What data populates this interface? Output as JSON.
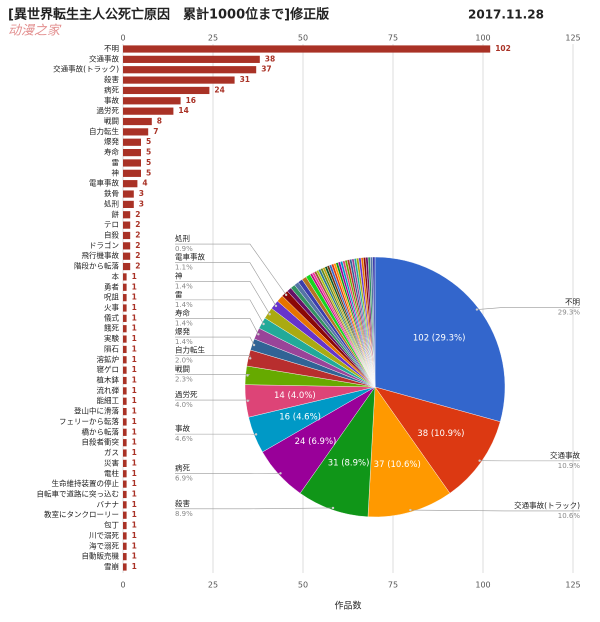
{
  "watermark": "动漫之家",
  "chart_data": [
    {
      "type": "bar",
      "orientation": "horizontal",
      "title": "[異世界転生主人公死亡原因　累計1000位まで]修正版",
      "subtitle": "2017.11.28",
      "xlabel": "作品数",
      "categories": [
        "不明",
        "交通事故",
        "交通事故(トラック)",
        "殺害",
        "病死",
        "事故",
        "過労死",
        "戦闘",
        "自力転生",
        "爆発",
        "寿命",
        "雷",
        "神",
        "電車事故",
        "鉄骨",
        "処刑",
        "餅",
        "テロ",
        "自殺",
        "ドラゴン",
        "飛行機事故",
        "階段から転落",
        "本",
        "勇者",
        "呪詛",
        "火事",
        "儀式",
        "餓死",
        "実験",
        "隕石",
        "溶鉱炉",
        "寝ゲロ",
        "植木鉢",
        "流れ弾",
        "能細工",
        "登山中に滑落",
        "フェリーから転落",
        "橋から転落",
        "自殺者衝突",
        "ガス",
        "災害",
        "電柱",
        "生命維持装置の停止",
        "自転車で道路に突っ込む",
        "バナナ",
        "教室にタンクローリー",
        "包丁",
        "川で溺死",
        "海で溺死",
        "自動販売機",
        "雪崩"
      ],
      "values": [
        102,
        38,
        37,
        31,
        24,
        16,
        14,
        8,
        7,
        5,
        5,
        5,
        5,
        4,
        3,
        3,
        2,
        2,
        2,
        2,
        2,
        2,
        1,
        1,
        1,
        1,
        1,
        1,
        1,
        1,
        1,
        1,
        1,
        1,
        1,
        1,
        1,
        1,
        1,
        1,
        1,
        1,
        1,
        1,
        1,
        1,
        1,
        1,
        1,
        1,
        1
      ],
      "color": "#a93226",
      "xlim": [
        0,
        125
      ],
      "xticks": [
        0,
        25,
        50,
        75,
        100,
        125
      ],
      "grid": true
    },
    {
      "type": "pie",
      "categories": [
        "不明",
        "交通事故",
        "交通事故(トラック)",
        "殺害",
        "病死",
        "事故",
        "過労死",
        "戦闘",
        "自力転生",
        "爆発",
        "寿命",
        "雷",
        "神",
        "電車事故",
        null,
        "処刑",
        null,
        null,
        null,
        null,
        null,
        null,
        null,
        null,
        null,
        null,
        null,
        null,
        null,
        null,
        null,
        null,
        null,
        null,
        null,
        null,
        null,
        null,
        null,
        null,
        null,
        null,
        null,
        null,
        null,
        null,
        null,
        null,
        null,
        null,
        null
      ],
      "values": [
        102,
        38,
        37,
        31,
        24,
        16,
        14,
        8,
        7,
        5,
        5,
        5,
        5,
        4,
        3,
        3,
        2,
        2,
        2,
        2,
        2,
        2,
        1,
        1,
        1,
        1,
        1,
        1,
        1,
        1,
        1,
        1,
        1,
        1,
        1,
        1,
        1,
        1,
        1,
        1,
        1,
        1,
        1,
        1,
        1,
        1,
        1,
        1,
        1,
        1,
        1
      ],
      "value_labels": [
        "102 (29.3%)",
        "38 (10.9%)",
        "37 (10.6%)",
        "31 (8.9%)",
        "24 (6.9%)",
        "16 (4.6%)",
        "14 (4.0%)",
        null,
        null,
        null,
        null,
        null,
        null,
        null,
        null,
        null,
        null,
        null,
        null,
        null,
        null,
        null,
        null,
        null,
        null,
        null,
        null,
        null,
        null,
        null,
        null,
        null,
        null,
        null,
        null,
        null,
        null,
        null,
        null,
        null,
        null,
        null,
        null,
        null,
        null,
        null,
        null,
        null,
        null,
        null,
        null
      ],
      "percent_labels": [
        "29.3%",
        "10.9%",
        "10.6%",
        "8.9%",
        "6.9%",
        "4.6%",
        "4.0%",
        "2.3%",
        "2.0%",
        "1.4%",
        "1.4%",
        "1.4%",
        "1.4%",
        "1.1%",
        null,
        "0.9%",
        null,
        null,
        null,
        null,
        null,
        null,
        null,
        null,
        null,
        null,
        null,
        null,
        null,
        null,
        null,
        null,
        null,
        null,
        null,
        null,
        null,
        null,
        null,
        null,
        null,
        null,
        null,
        null,
        null,
        null,
        null,
        null,
        null,
        null,
        null
      ],
      "colors": [
        "#3366cc",
        "#dc3912",
        "#ff9900",
        "#109618",
        "#990099",
        "#0099c6",
        "#dd4477",
        "#66aa00",
        "#b82e2e",
        "#316395",
        "#994499",
        "#22aa99",
        "#aaaa11",
        "#6633cc",
        "#e67300",
        "#8b0707",
        "#651067",
        "#329262",
        "#5574a6",
        "#3b3eac",
        "#b77322",
        "#16d620",
        "#b91383",
        "#f4359e",
        "#9c5935",
        "#a9c413",
        "#2a778d",
        "#668d1c",
        "#bea413",
        "#0c5922",
        "#743411"
      ]
    }
  ]
}
